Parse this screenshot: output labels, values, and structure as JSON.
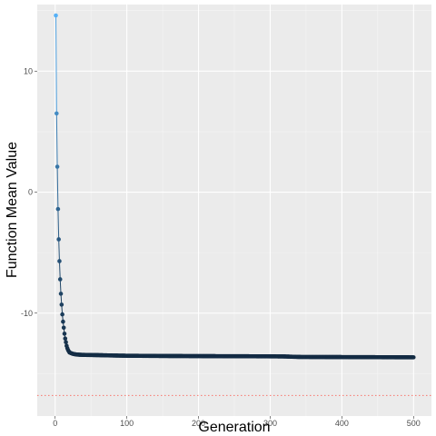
{
  "chart_data": {
    "type": "line",
    "title": "",
    "xlabel": "Generation",
    "ylabel": "Function Mean Value",
    "xlim": [
      -25,
      525
    ],
    "ylim": [
      -18.5,
      15.5
    ],
    "x_ticks": [
      0,
      100,
      200,
      300,
      400,
      500
    ],
    "y_ticks": [
      -10,
      0,
      10
    ],
    "grid": true,
    "legend": "none",
    "reference_line": {
      "y": -16.8,
      "color": "#f8766d",
      "style": "dotted"
    },
    "point_color_scale": {
      "low": "#132b43",
      "high": "#56b1f7"
    },
    "series": [
      {
        "x": [
          1,
          2,
          3,
          4,
          5,
          6,
          7,
          8,
          9,
          10,
          11,
          12,
          13,
          14,
          15,
          16,
          17,
          18,
          19,
          20,
          22,
          24,
          26,
          28,
          30,
          35,
          40,
          50,
          60,
          80,
          100,
          150,
          200,
          250,
          300,
          320,
          340,
          400,
          450,
          500
        ],
        "y": [
          14.6,
          6.5,
          2.1,
          -1.4,
          -3.9,
          -5.7,
          -7.2,
          -8.4,
          -9.3,
          -10.1,
          -10.7,
          -11.2,
          -11.7,
          -12.1,
          -12.4,
          -12.7,
          -12.9,
          -13.05,
          -13.15,
          -13.25,
          -13.3,
          -13.35,
          -13.38,
          -13.4,
          -13.42,
          -13.44,
          -13.45,
          -13.46,
          -13.47,
          -13.5,
          -13.52,
          -13.54,
          -13.55,
          -13.56,
          -13.57,
          -13.58,
          -13.62,
          -13.63,
          -13.64,
          -13.65
        ]
      }
    ]
  }
}
